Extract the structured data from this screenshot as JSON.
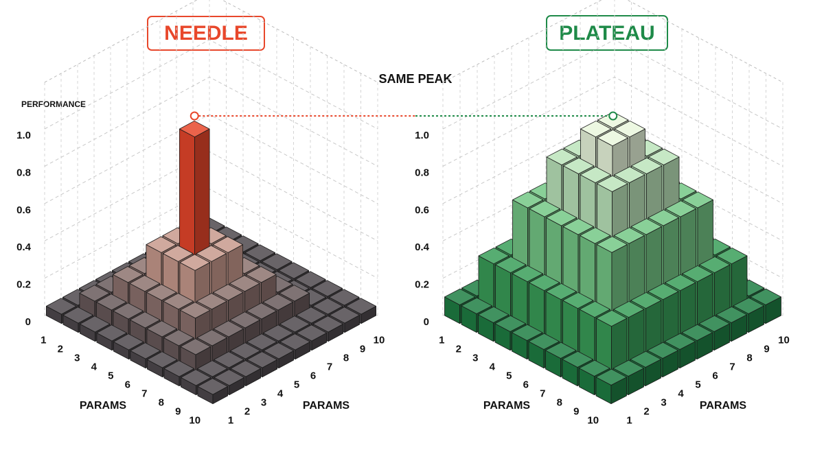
{
  "annotation": "SAME PEAK",
  "chart_data": [
    {
      "type": "bar3d",
      "title": "NEEDLE",
      "x_label": "PARAMS",
      "y_label": "PARAMS",
      "z_label": "PERFORMANCE",
      "x": [
        1,
        2,
        3,
        4,
        5,
        6,
        7,
        8,
        9,
        10
      ],
      "y": [
        1,
        2,
        3,
        4,
        5,
        6,
        7,
        8,
        9,
        10
      ],
      "z": [
        [
          0.05,
          0.05,
          0.05,
          0.05,
          0.05,
          0.05,
          0.05,
          0.05,
          0.05,
          0.05
        ],
        [
          0.05,
          0.12,
          0.12,
          0.12,
          0.12,
          0.12,
          0.12,
          0.12,
          0.05,
          0.05
        ],
        [
          0.05,
          0.12,
          0.22,
          0.22,
          0.22,
          0.22,
          0.22,
          0.12,
          0.05,
          0.05
        ],
        [
          0.05,
          0.12,
          0.22,
          0.38,
          0.38,
          0.38,
          0.22,
          0.12,
          0.05,
          0.05
        ],
        [
          0.05,
          0.12,
          0.22,
          0.38,
          1.0,
          0.38,
          0.22,
          0.12,
          0.05,
          0.05
        ],
        [
          0.05,
          0.12,
          0.22,
          0.38,
          0.38,
          0.38,
          0.22,
          0.12,
          0.05,
          0.05
        ],
        [
          0.05,
          0.12,
          0.22,
          0.22,
          0.22,
          0.22,
          0.22,
          0.12,
          0.05,
          0.05
        ],
        [
          0.05,
          0.12,
          0.12,
          0.12,
          0.12,
          0.12,
          0.12,
          0.12,
          0.05,
          0.05
        ],
        [
          0.05,
          0.05,
          0.05,
          0.05,
          0.05,
          0.05,
          0.05,
          0.05,
          0.05,
          0.05
        ],
        [
          0.05,
          0.05,
          0.05,
          0.05,
          0.05,
          0.05,
          0.05,
          0.05,
          0.05,
          0.05
        ]
      ],
      "zlim": [
        0,
        1
      ],
      "zticks": [
        0,
        0.2,
        0.4,
        0.6,
        0.8,
        {
          "value": 1,
          "label": "1.0"
        }
      ],
      "colors": [
        "#3c3c44",
        "#f4b8a4",
        "#e8472b"
      ],
      "grid": true
    },
    {
      "type": "bar3d",
      "title": "PLATEAU",
      "x_label": "PARAMS",
      "y_label": "PARAMS",
      "x": [
        1,
        2,
        3,
        4,
        5,
        6,
        7,
        8,
        9,
        10
      ],
      "y": [
        1,
        2,
        3,
        4,
        5,
        6,
        7,
        8,
        9,
        10
      ],
      "z": [
        [
          0.1,
          0.1,
          0.1,
          0.1,
          0.1,
          0.1,
          0.1,
          0.1,
          0.1,
          0.1
        ],
        [
          0.1,
          0.32,
          0.32,
          0.32,
          0.32,
          0.32,
          0.32,
          0.32,
          0.32,
          0.1
        ],
        [
          0.1,
          0.32,
          0.62,
          0.62,
          0.62,
          0.62,
          0.62,
          0.62,
          0.32,
          0.1
        ],
        [
          0.1,
          0.32,
          0.62,
          0.85,
          0.85,
          0.85,
          0.85,
          0.62,
          0.32,
          0.1
        ],
        [
          0.1,
          0.32,
          0.62,
          0.85,
          1.0,
          1.0,
          0.85,
          0.62,
          0.32,
          0.1
        ],
        [
          0.1,
          0.32,
          0.62,
          0.85,
          1.0,
          1.0,
          0.85,
          0.62,
          0.32,
          0.1
        ],
        [
          0.1,
          0.32,
          0.62,
          0.85,
          0.85,
          0.85,
          0.85,
          0.62,
          0.32,
          0.1
        ],
        [
          0.1,
          0.32,
          0.62,
          0.62,
          0.62,
          0.62,
          0.62,
          0.62,
          0.32,
          0.1
        ],
        [
          0.1,
          0.32,
          0.32,
          0.32,
          0.32,
          0.32,
          0.32,
          0.32,
          0.32,
          0.1
        ],
        [
          0.1,
          0.1,
          0.1,
          0.1,
          0.1,
          0.1,
          0.1,
          0.1,
          0.1,
          0.1
        ]
      ],
      "zlim": [
        0,
        1
      ],
      "zticks": [
        0,
        0.2,
        0.4,
        0.6,
        0.8,
        {
          "value": 1,
          "label": "1.0"
        }
      ],
      "colors": [
        "#13703a",
        "#4fb86a",
        "#eaf7dd"
      ],
      "grid": true
    }
  ]
}
